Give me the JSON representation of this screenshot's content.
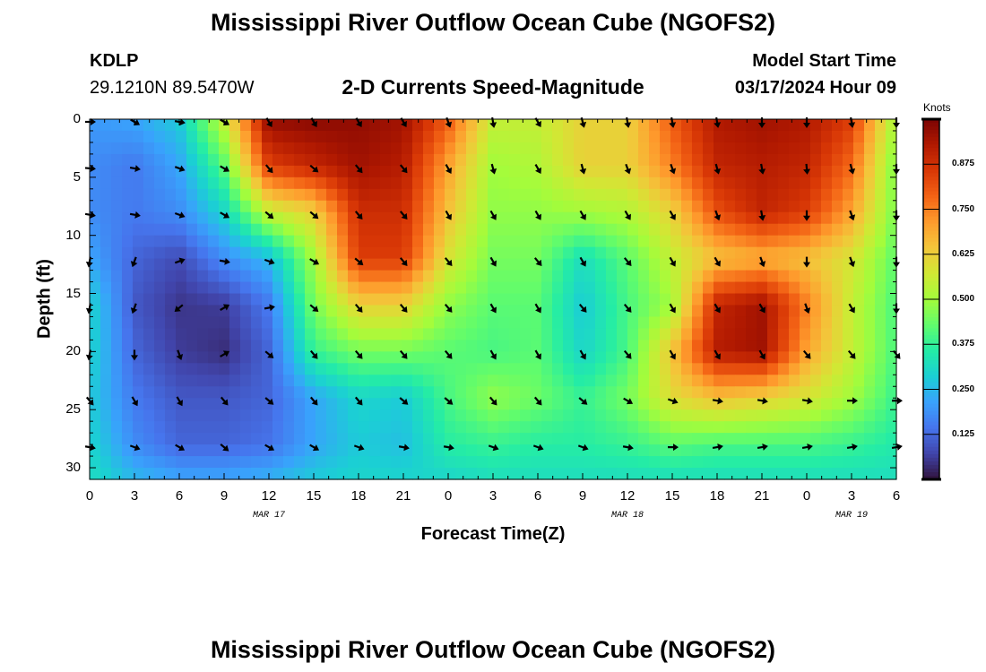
{
  "header": {
    "title": "Mississippi River Outflow Ocean Cube (NGOFS2)",
    "station_id": "KDLP",
    "coords": "29.1210N  89.5470W",
    "subtitle": "2-D Currents Speed-Magnitude",
    "model_label": "Model Start Time",
    "model_time": "03/17/2024 Hour 09"
  },
  "footer": {
    "title": "Mississippi River Outflow Ocean Cube (NGOFS2)"
  },
  "chart_data": {
    "type": "heatmap",
    "xlabel": "Forecast Time(Z)",
    "ylabel": "Depth (ft)",
    "x_tick_labels": [
      "0",
      "3",
      "6",
      "9",
      "12",
      "15",
      "18",
      "21",
      "0",
      "3",
      "6",
      "9",
      "12",
      "15",
      "18",
      "21",
      "0",
      "3",
      "6"
    ],
    "x_range_hours": [
      0,
      54
    ],
    "date_labels": [
      {
        "text": "MAR 17",
        "hour": 12
      },
      {
        "text": "MAR 18",
        "hour": 36
      },
      {
        "text": "MAR 19",
        "hour": 51
      }
    ],
    "y_tick_labels": [
      "0",
      "5",
      "10",
      "15",
      "20",
      "25",
      "30"
    ],
    "y_range_ft": [
      0,
      31
    ],
    "colorbar": {
      "units": "Knots",
      "range": [
        0,
        1.0
      ],
      "tick_labels": [
        "0.125",
        "0.250",
        "0.375",
        "0.500",
        "0.625",
        "0.750",
        "0.875"
      ],
      "tick_values": [
        0.125,
        0.25,
        0.375,
        0.5,
        0.625,
        0.75,
        0.875
      ],
      "colors": [
        "#30123b",
        "#4145ab",
        "#4675ed",
        "#39a2fc",
        "#1bcfd4",
        "#24eca6",
        "#61fc6c",
        "#a4fc3b",
        "#d1e834",
        "#f3c63a",
        "#fe9b2d",
        "#f36315",
        "#d93806",
        "#b11901",
        "#7a0403"
      ]
    },
    "arrow_hours": [
      0,
      3,
      6,
      9,
      12,
      15,
      18,
      21,
      24,
      27,
      30,
      33,
      36,
      39,
      42,
      45,
      48,
      51,
      54
    ],
    "arrow_depths_ft": [
      0,
      4,
      8,
      12,
      16,
      20,
      24,
      28
    ],
    "arrow_dir_deg": [
      [
        90,
        120,
        100,
        120,
        150,
        150,
        150,
        150,
        160,
        170,
        150,
        165,
        170,
        170,
        170,
        180,
        180,
        170,
        180
      ],
      [
        95,
        100,
        110,
        120,
        140,
        130,
        140,
        140,
        150,
        165,
        150,
        165,
        160,
        160,
        165,
        170,
        175,
        165,
        180
      ],
      [
        100,
        100,
        110,
        120,
        130,
        130,
        140,
        140,
        150,
        150,
        150,
        150,
        150,
        150,
        160,
        170,
        180,
        160,
        180
      ],
      [
        190,
        200,
        70,
        100,
        110,
        120,
        130,
        140,
        140,
        150,
        140,
        150,
        140,
        150,
        150,
        160,
        180,
        160,
        180
      ],
      [
        190,
        200,
        230,
        60,
        80,
        130,
        140,
        140,
        140,
        150,
        150,
        140,
        140,
        150,
        150,
        150,
        160,
        150,
        180
      ],
      [
        190,
        180,
        160,
        60,
        130,
        140,
        140,
        140,
        140,
        150,
        150,
        150,
        140,
        150,
        150,
        150,
        140,
        140,
        140
      ],
      [
        140,
        150,
        150,
        140,
        130,
        140,
        140,
        130,
        130,
        140,
        140,
        130,
        120,
        110,
        100,
        100,
        100,
        90,
        90
      ],
      [
        100,
        110,
        120,
        130,
        120,
        120,
        110,
        100,
        100,
        110,
        110,
        110,
        100,
        90,
        80,
        80,
        80,
        80,
        80
      ]
    ],
    "speed_anchors_hours": [
      0,
      3,
      6,
      9,
      12,
      15,
      18,
      21,
      24,
      27,
      30,
      33,
      36,
      39,
      42,
      45,
      48,
      51,
      54
    ],
    "speed_anchors_depths_ft": [
      0,
      4,
      8,
      12,
      16,
      20,
      24,
      28,
      31
    ],
    "speed_grid_knots": [
      [
        0.2,
        0.22,
        0.28,
        0.55,
        0.97,
        0.98,
        0.97,
        0.95,
        0.8,
        0.55,
        0.55,
        0.62,
        0.62,
        0.8,
        0.93,
        0.95,
        0.93,
        0.85,
        0.5
      ],
      [
        0.18,
        0.15,
        0.22,
        0.42,
        0.85,
        0.9,
        0.95,
        0.92,
        0.7,
        0.5,
        0.52,
        0.62,
        0.62,
        0.75,
        0.9,
        0.92,
        0.9,
        0.78,
        0.45
      ],
      [
        0.18,
        0.15,
        0.18,
        0.3,
        0.55,
        0.62,
        0.88,
        0.88,
        0.65,
        0.48,
        0.48,
        0.5,
        0.52,
        0.62,
        0.82,
        0.9,
        0.85,
        0.7,
        0.45
      ],
      [
        0.22,
        0.12,
        0.08,
        0.18,
        0.25,
        0.5,
        0.85,
        0.85,
        0.58,
        0.45,
        0.45,
        0.32,
        0.42,
        0.55,
        0.65,
        0.68,
        0.65,
        0.58,
        0.42
      ],
      [
        0.3,
        0.1,
        0.05,
        0.06,
        0.15,
        0.45,
        0.62,
        0.62,
        0.48,
        0.42,
        0.42,
        0.28,
        0.4,
        0.5,
        0.9,
        0.95,
        0.75,
        0.55,
        0.4
      ],
      [
        0.3,
        0.12,
        0.06,
        0.04,
        0.12,
        0.38,
        0.45,
        0.45,
        0.42,
        0.4,
        0.42,
        0.3,
        0.4,
        0.65,
        0.92,
        0.95,
        0.7,
        0.55,
        0.4
      ],
      [
        0.28,
        0.15,
        0.1,
        0.1,
        0.12,
        0.22,
        0.3,
        0.28,
        0.4,
        0.48,
        0.44,
        0.38,
        0.45,
        0.6,
        0.65,
        0.62,
        0.58,
        0.5,
        0.38
      ],
      [
        0.3,
        0.18,
        0.12,
        0.12,
        0.14,
        0.22,
        0.28,
        0.26,
        0.36,
        0.38,
        0.36,
        0.36,
        0.38,
        0.42,
        0.4,
        0.4,
        0.4,
        0.38,
        0.35
      ],
      [
        0.32,
        0.25,
        0.22,
        0.22,
        0.24,
        0.28,
        0.3,
        0.3,
        0.3,
        0.32,
        0.32,
        0.32,
        0.32,
        0.32,
        0.32,
        0.32,
        0.32,
        0.32,
        0.32
      ]
    ]
  }
}
